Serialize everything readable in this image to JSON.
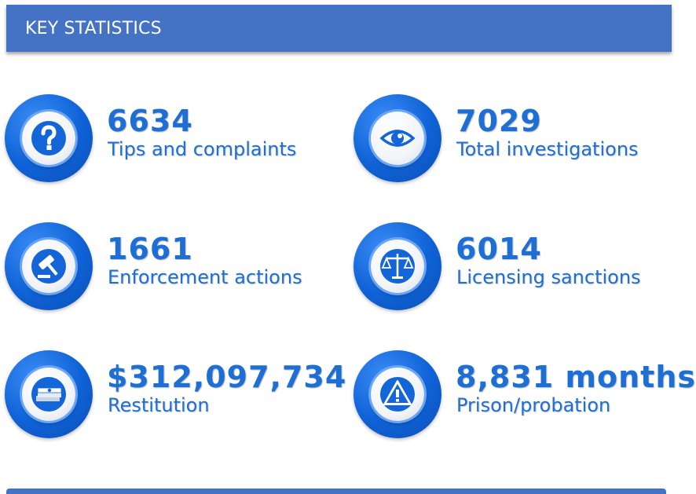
{
  "header": {
    "title": "KEY STATISTICS"
  },
  "colors": {
    "header_bg": "#4472c4",
    "accent": "#1d6fd6",
    "badge": "#0f62d6"
  },
  "stats": [
    {
      "value": "6634",
      "label": "Tips and complaints",
      "icon": "question-mark-icon"
    },
    {
      "value": "7029",
      "label": "Total investigations",
      "icon": "eye-icon"
    },
    {
      "value": "1661",
      "label": "Enforcement actions",
      "icon": "gavel-icon"
    },
    {
      "value": "6014",
      "label": "Licensing sanctions",
      "icon": "scales-icon"
    },
    {
      "value": "$312,097,734",
      "label": "Restitution",
      "icon": "money-icon"
    },
    {
      "value": "8,831 months",
      "label": "Prison/probation",
      "icon": "warning-icon"
    }
  ]
}
